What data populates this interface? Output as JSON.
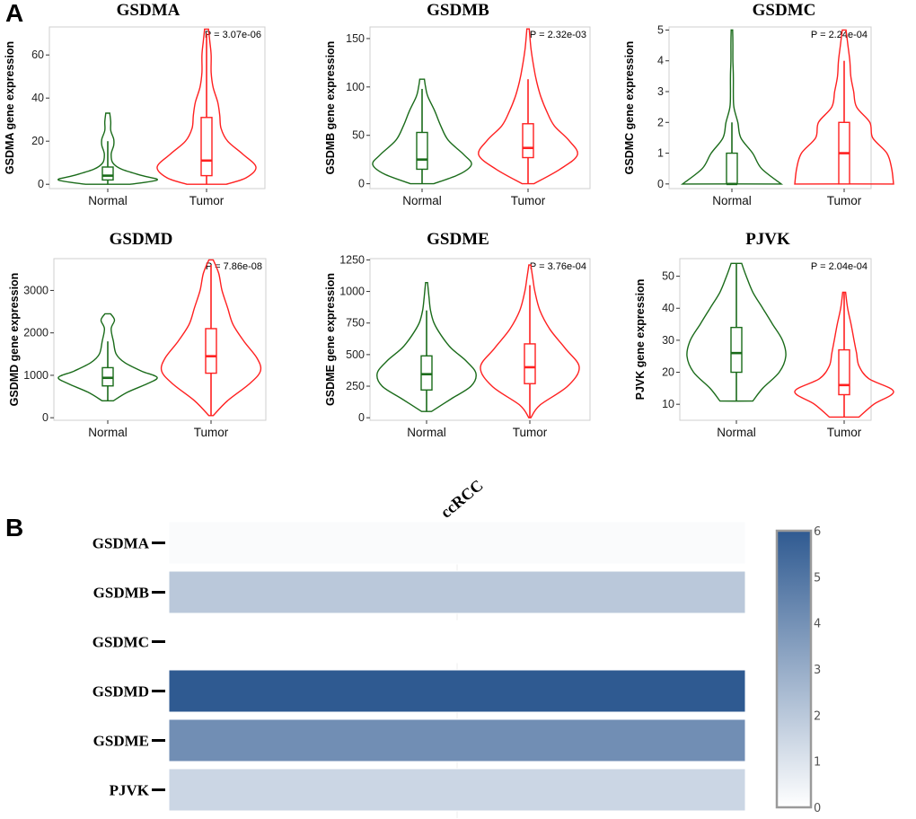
{
  "panels": {
    "a_label": "A",
    "b_label": "B"
  },
  "colors": {
    "normal": "#1a6b1a",
    "tumor": "#ff2020",
    "heat_high": "#2f5a91",
    "heat_low": "#ffffff"
  },
  "chart_data": [
    {
      "type": "violin",
      "title": "GSDMA",
      "ylabel": "GSDMA gene expression",
      "categories": [
        "Normal",
        "Tumor"
      ],
      "pvalue": "P = 3.07e-06",
      "ylim": [
        -2,
        73
      ],
      "yticks": [
        0,
        20,
        40,
        60
      ],
      "series": [
        {
          "name": "Normal",
          "min": 0,
          "max": 33,
          "q1": 2,
          "median": 4,
          "q3": 8,
          "whisker_low": 0,
          "whisker_high": 20,
          "density": [
            [
              0,
              0.45
            ],
            [
              2,
              1.0
            ],
            [
              4,
              0.7
            ],
            [
              7,
              0.28
            ],
            [
              10,
              0.1
            ],
            [
              14,
              0.07
            ],
            [
              18,
              0.12
            ],
            [
              21,
              0.12
            ],
            [
              25,
              0.06
            ],
            [
              29,
              0.06
            ],
            [
              33,
              0.04
            ]
          ]
        },
        {
          "name": "Tumor",
          "min": 0,
          "max": 72,
          "q1": 4,
          "median": 11,
          "q3": 31,
          "whisker_low": 0,
          "whisker_high": 70,
          "density": [
            [
              0,
              0.3
            ],
            [
              3,
              0.6
            ],
            [
              8,
              0.75
            ],
            [
              14,
              0.55
            ],
            [
              20,
              0.32
            ],
            [
              26,
              0.22
            ],
            [
              32,
              0.2
            ],
            [
              38,
              0.17
            ],
            [
              45,
              0.1
            ],
            [
              52,
              0.07
            ],
            [
              60,
              0.07
            ],
            [
              66,
              0.05
            ],
            [
              72,
              0.03
            ]
          ]
        }
      ]
    },
    {
      "type": "violin",
      "title": "GSDMB",
      "ylabel": "GSDMB gene expression",
      "categories": [
        "Normal",
        "Tumor"
      ],
      "pvalue": "P = 2.32e-03",
      "ylim": [
        -5,
        162
      ],
      "yticks": [
        0,
        50,
        100,
        150
      ],
      "series": [
        {
          "name": "Normal",
          "min": 0,
          "max": 108,
          "q1": 15,
          "median": 25,
          "q3": 53,
          "whisker_low": 0,
          "whisker_high": 98,
          "density": [
            [
              0,
              0.2
            ],
            [
              10,
              0.65
            ],
            [
              20,
              0.85
            ],
            [
              30,
              0.72
            ],
            [
              45,
              0.45
            ],
            [
              60,
              0.32
            ],
            [
              75,
              0.22
            ],
            [
              90,
              0.1
            ],
            [
              100,
              0.06
            ],
            [
              108,
              0.04
            ]
          ]
        },
        {
          "name": "Tumor",
          "min": 0,
          "max": 160,
          "q1": 27,
          "median": 37,
          "q3": 62,
          "whisker_low": 0,
          "whisker_high": 108,
          "density": [
            [
              0,
              0.1
            ],
            [
              15,
              0.55
            ],
            [
              30,
              0.85
            ],
            [
              45,
              0.7
            ],
            [
              60,
              0.45
            ],
            [
              75,
              0.32
            ],
            [
              90,
              0.22
            ],
            [
              105,
              0.15
            ],
            [
              120,
              0.1
            ],
            [
              140,
              0.05
            ],
            [
              160,
              0.02
            ]
          ]
        }
      ]
    },
    {
      "type": "violin",
      "title": "GSDMC",
      "ylabel": "GSDMC gene expression",
      "categories": [
        "Normal",
        "Tumor"
      ],
      "pvalue": "P = 2.24e-04",
      "ylim": [
        -0.15,
        5.1
      ],
      "yticks": [
        0,
        1,
        2,
        3,
        4,
        5
      ],
      "series": [
        {
          "name": "Normal",
          "min": 0,
          "max": 5,
          "q1": 0,
          "median": 0,
          "q3": 1,
          "whisker_low": 0,
          "whisker_high": 2,
          "density": [
            [
              0,
              1.0
            ],
            [
              0.5,
              0.6
            ],
            [
              1,
              0.42
            ],
            [
              1.5,
              0.18
            ],
            [
              2,
              0.12
            ],
            [
              2.5,
              0.04
            ],
            [
              3,
              0.03
            ],
            [
              3.5,
              0.03
            ],
            [
              4,
              0.02
            ],
            [
              4.5,
              0.02
            ],
            [
              5,
              0.015
            ]
          ]
        },
        {
          "name": "Tumor",
          "min": 0,
          "max": 5,
          "q1": 0,
          "median": 1,
          "q3": 2,
          "whisker_low": 0,
          "whisker_high": 4,
          "density": [
            [
              0,
              0.52
            ],
            [
              0.5,
              0.5
            ],
            [
              1,
              0.45
            ],
            [
              1.5,
              0.3
            ],
            [
              2,
              0.27
            ],
            [
              2.5,
              0.13
            ],
            [
              3,
              0.1
            ],
            [
              3.5,
              0.07
            ],
            [
              4,
              0.06
            ],
            [
              4.5,
              0.04
            ],
            [
              5,
              0.02
            ]
          ]
        }
      ]
    },
    {
      "type": "violin",
      "title": "GSDMD",
      "ylabel": "GSDMD gene expression",
      "categories": [
        "Normal",
        "Tumor"
      ],
      "pvalue": "P = 7.86e-08",
      "ylim": [
        -60,
        3750
      ],
      "yticks": [
        0,
        1000,
        2000,
        3000
      ],
      "series": [
        {
          "name": "Normal",
          "min": 400,
          "max": 2450,
          "q1": 750,
          "median": 940,
          "q3": 1180,
          "whisker_low": 400,
          "whisker_high": 1800,
          "density": [
            [
              400,
              0.1
            ],
            [
              600,
              0.35
            ],
            [
              800,
              0.7
            ],
            [
              950,
              0.88
            ],
            [
              1100,
              0.6
            ],
            [
              1300,
              0.3
            ],
            [
              1500,
              0.15
            ],
            [
              1800,
              0.1
            ],
            [
              2100,
              0.06
            ],
            [
              2300,
              0.12
            ],
            [
              2450,
              0.05
            ]
          ]
        },
        {
          "name": "Tumor",
          "min": 50,
          "max": 3720,
          "q1": 1050,
          "median": 1450,
          "q3": 2100,
          "whisker_low": 50,
          "whisker_high": 3600,
          "density": [
            [
              50,
              0.02
            ],
            [
              400,
              0.15
            ],
            [
              800,
              0.35
            ],
            [
              1100,
              0.45
            ],
            [
              1400,
              0.42
            ],
            [
              1800,
              0.3
            ],
            [
              2200,
              0.2
            ],
            [
              2600,
              0.15
            ],
            [
              3000,
              0.1
            ],
            [
              3400,
              0.07
            ],
            [
              3720,
              0.02
            ]
          ]
        }
      ]
    },
    {
      "type": "violin",
      "title": "GSDME",
      "ylabel": "GSDME gene expression",
      "categories": [
        "Normal",
        "Tumor"
      ],
      "pvalue": "P = 3.76e-04",
      "ylim": [
        -20,
        1260
      ],
      "yticks": [
        0,
        250,
        500,
        750,
        1000,
        1250
      ],
      "series": [
        {
          "name": "Normal",
          "min": 50,
          "max": 1070,
          "q1": 220,
          "median": 345,
          "q3": 490,
          "whisker_low": 50,
          "whisker_high": 850,
          "density": [
            [
              50,
              0.1
            ],
            [
              150,
              0.5
            ],
            [
              250,
              0.9
            ],
            [
              350,
              1.0
            ],
            [
              450,
              0.8
            ],
            [
              550,
              0.5
            ],
            [
              650,
              0.3
            ],
            [
              750,
              0.15
            ],
            [
              850,
              0.08
            ],
            [
              950,
              0.05
            ],
            [
              1070,
              0.02
            ]
          ]
        },
        {
          "name": "Tumor",
          "min": 0,
          "max": 1210,
          "q1": 270,
          "median": 400,
          "q3": 585,
          "whisker_low": 0,
          "whisker_high": 1050,
          "density": [
            [
              0,
              0.02
            ],
            [
              100,
              0.2
            ],
            [
              250,
              0.75
            ],
            [
              400,
              0.98
            ],
            [
              550,
              0.7
            ],
            [
              700,
              0.4
            ],
            [
              850,
              0.2
            ],
            [
              1000,
              0.1
            ],
            [
              1100,
              0.06
            ],
            [
              1210,
              0.02
            ]
          ]
        }
      ]
    },
    {
      "type": "violin",
      "title": "PJVK",
      "ylabel": "PJVK gene expression",
      "categories": [
        "Normal",
        "Tumor"
      ],
      "pvalue": "P = 2.04e-04",
      "ylim": [
        5,
        55.5
      ],
      "yticks": [
        10,
        20,
        30,
        40,
        50
      ],
      "series": [
        {
          "name": "Normal",
          "min": 11,
          "max": 54,
          "q1": 20,
          "median": 26,
          "q3": 34,
          "whisker_low": 11,
          "whisker_high": 54,
          "density": [
            [
              11,
              0.25
            ],
            [
              15,
              0.4
            ],
            [
              20,
              0.65
            ],
            [
              25,
              0.75
            ],
            [
              30,
              0.7
            ],
            [
              35,
              0.55
            ],
            [
              40,
              0.4
            ],
            [
              45,
              0.25
            ],
            [
              50,
              0.15
            ],
            [
              54,
              0.08
            ]
          ]
        },
        {
          "name": "Tumor",
          "min": 6,
          "max": 45,
          "q1": 13,
          "median": 16,
          "q3": 27,
          "whisker_low": 6,
          "whisker_high": 45,
          "density": [
            [
              6,
              0.3
            ],
            [
              10,
              0.6
            ],
            [
              14,
              1.0
            ],
            [
              18,
              0.5
            ],
            [
              22,
              0.3
            ],
            [
              26,
              0.25
            ],
            [
              30,
              0.2
            ],
            [
              35,
              0.14
            ],
            [
              40,
              0.07
            ],
            [
              45,
              0.03
            ]
          ]
        }
      ]
    },
    {
      "type": "heatmap",
      "column": "ccRCC",
      "rows": [
        "GSDMA",
        "GSDMB",
        "GSDMC",
        "GSDMD",
        "GSDME",
        "PJVK"
      ],
      "values": [
        0.15,
        2.0,
        0.0,
        6.0,
        4.1,
        1.5
      ],
      "colorbar": {
        "range": [
          0,
          6
        ],
        "ticks": [
          0,
          1,
          2,
          3,
          4,
          5,
          6
        ]
      }
    }
  ]
}
